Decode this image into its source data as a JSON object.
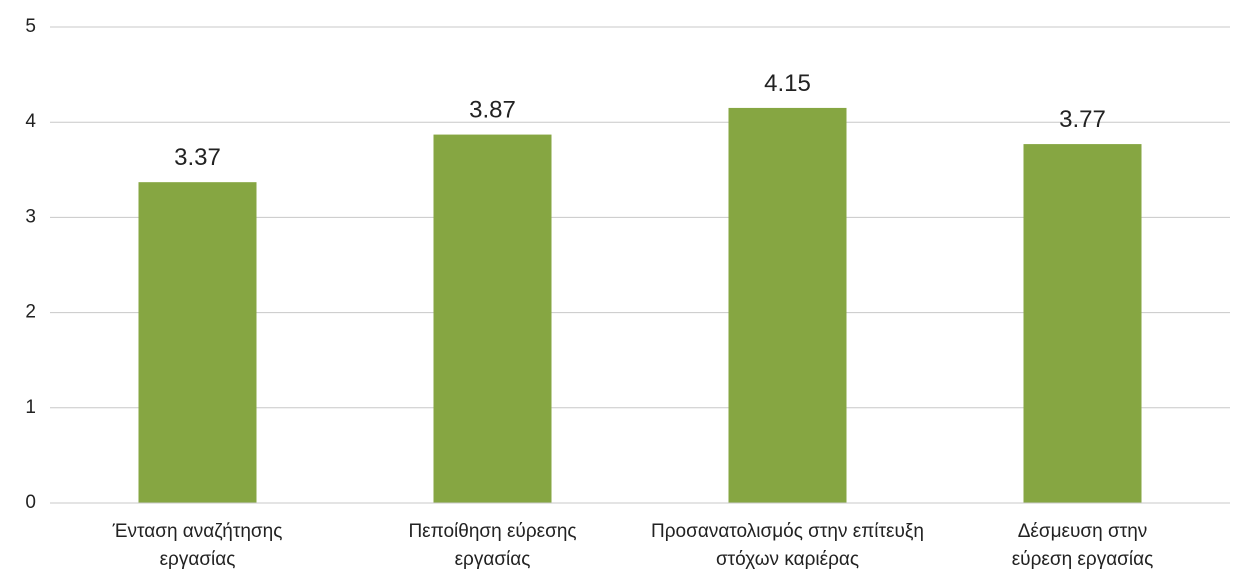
{
  "chart_data": {
    "type": "bar",
    "categories": [
      [
        "Ένταση αναζήτησης",
        "εργασίας"
      ],
      [
        "Πεποίθηση εύρεσης",
        "εργασίας"
      ],
      [
        "Προσανατολισμός στην επίτευξη",
        "στόχων καριέρας"
      ],
      [
        "Δέσμευση στην",
        "εύρεση εργασίας"
      ]
    ],
    "values": [
      3.37,
      3.87,
      4.15,
      3.77
    ],
    "data_labels": [
      "3.37",
      "3.87",
      "4.15",
      "3.77"
    ],
    "ylim": [
      0,
      5
    ],
    "yticks": [
      "0",
      "1",
      "2",
      "3",
      "4",
      "5"
    ],
    "grid": true,
    "bar_color": "#86A642",
    "gridline_color": "#c8c8c8"
  }
}
